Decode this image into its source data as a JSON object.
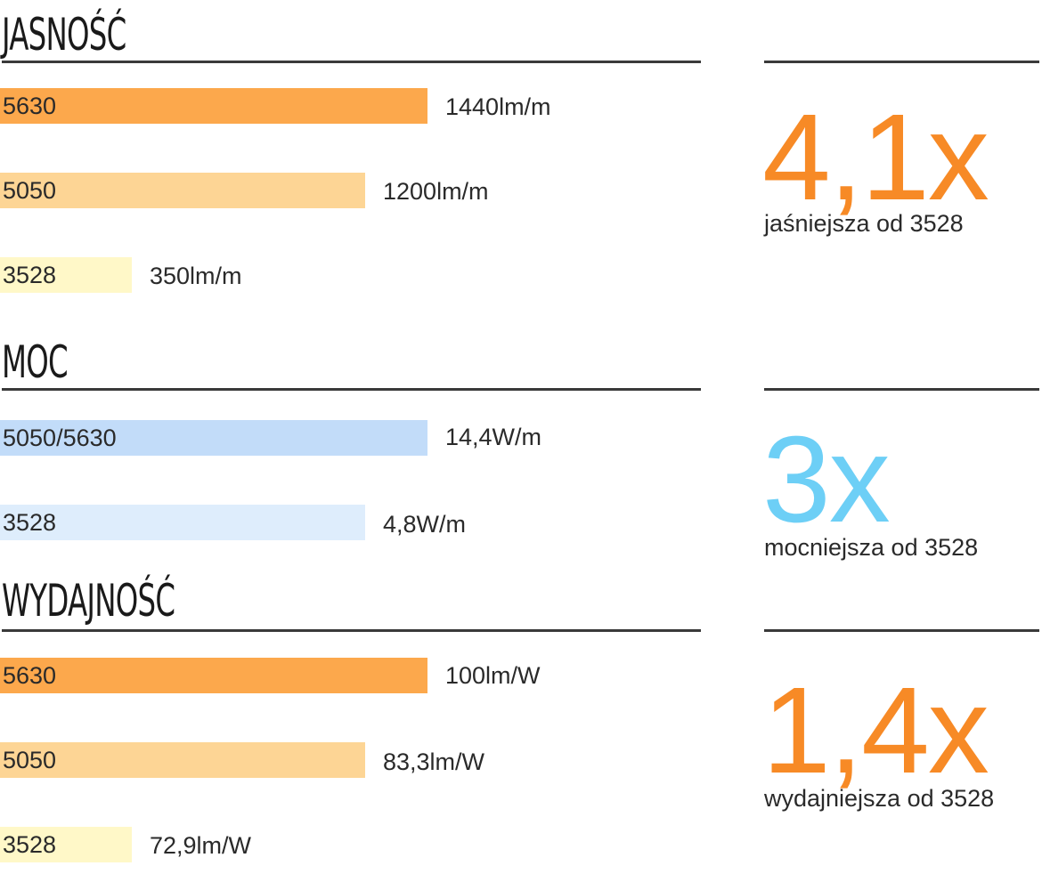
{
  "colors": {
    "c5630": "#fca84c",
    "c5050": "#fdd595",
    "c3528": "#fff8c8",
    "power_high": "#c2dcf9",
    "power_low": "#deedfc",
    "accent_orange": "#f78a26",
    "accent_blue": "#6dcff6"
  },
  "chart_data": [
    {
      "type": "bar",
      "orientation": "horizontal",
      "title": "JASNOŚĆ",
      "categories": [
        "5630",
        "5050",
        "3528"
      ],
      "values": [
        1440,
        1200,
        350
      ],
      "value_labels": [
        "1440lm/m",
        "1200lm/m",
        "350lm/m"
      ],
      "unit": "lm/m",
      "highlight": "4,1x",
      "highlight_caption": "jaśniejsza od 3528"
    },
    {
      "type": "bar",
      "orientation": "horizontal",
      "title": "MOC",
      "categories": [
        "5050/5630",
        "3528"
      ],
      "values": [
        14.4,
        4.8
      ],
      "value_labels": [
        "14,4W/m",
        "4,8W/m"
      ],
      "unit": "W/m",
      "highlight": "3x",
      "highlight_caption": "mocniejsza od 3528"
    },
    {
      "type": "bar",
      "orientation": "horizontal",
      "title": "WYDAJNOŚĆ",
      "categories": [
        "5630",
        "5050",
        "3528"
      ],
      "values": [
        100,
        83.3,
        72.9
      ],
      "value_labels": [
        "100lm/W",
        "83,3lm/W",
        "72,9lm/W"
      ],
      "unit": "lm/W",
      "highlight": "1,4x",
      "highlight_caption": "wydajniejsza od 3528"
    }
  ]
}
